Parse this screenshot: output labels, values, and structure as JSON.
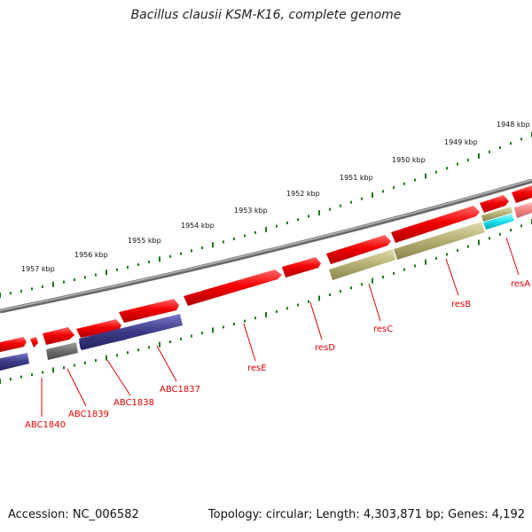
{
  "title": "Bacillus clausii KSM-K16, complete genome",
  "accession": "Accession: NC_006582",
  "summary": "Topology: circular; Length: 4,303,871 bp; Genes: 4,192",
  "kbp_labels": [
    "1957 kbp",
    "1956 kbp",
    "1955 kbp",
    "1954 kbp",
    "1953 kbp",
    "1952 kbp",
    "1951 kbp",
    "1950 kbp",
    "1949 kbp",
    "1948 kbp"
  ],
  "gene_labels": [
    "ABC1840",
    "ABC1839",
    "ABC1838",
    "ABC1837",
    "resE",
    "resD",
    "resC",
    "resB",
    "resA"
  ],
  "colors": {
    "backbone": "#8a8a8a",
    "gene": "#f20000",
    "cog_navy": "#3b3a86",
    "cog_blue": "#1010e0",
    "cog_gray": "#6d6d6d",
    "cog_olive": "#b5ae72",
    "cog_cyan": "#19e0f0",
    "ticks": "#1a7a1a",
    "labels": "#e00000"
  }
}
